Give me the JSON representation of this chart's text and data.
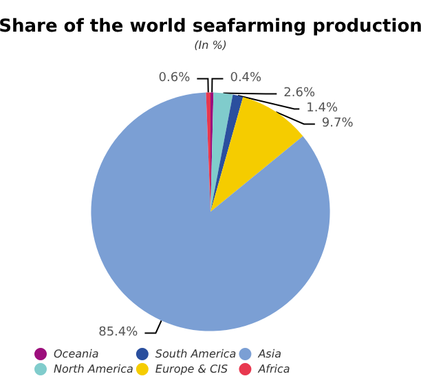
{
  "chart_data": {
    "type": "pie",
    "title": "Share of the world seafarming production",
    "subtitle": "(In %)",
    "categories": [
      "Oceania",
      "North America",
      "South America",
      "Europe & CIS",
      "Asia",
      "Africa"
    ],
    "values": [
      0.4,
      2.6,
      1.4,
      9.7,
      85.4,
      0.6
    ],
    "colors": [
      "#9c0e7c",
      "#80cccc",
      "#2a4f9e",
      "#f5cc00",
      "#7b9fd4",
      "#e8384f"
    ],
    "value_labels": [
      "0.4%",
      "2.6%",
      "1.4%",
      "9.7%",
      "85.4%",
      "0.6%"
    ],
    "legend": "bottom"
  }
}
